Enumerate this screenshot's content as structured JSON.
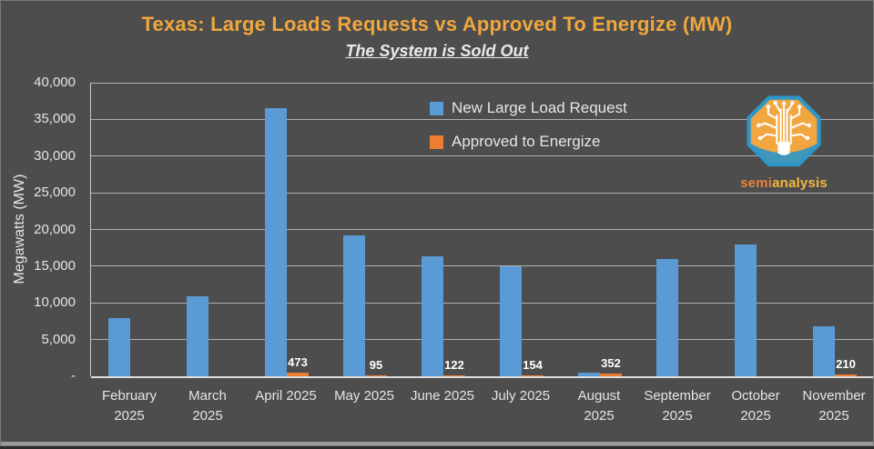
{
  "chart": {
    "title": "Texas: Large Loads Requests vs Approved To Energize (MW)",
    "subtitle": "The System is Sold Out"
  },
  "logo": {
    "semi": "semi",
    "analysis": "analysis"
  },
  "colors": {
    "background": "#4D4D4D",
    "title": "#F0A73E",
    "text": "#E6E6E6",
    "gridline": "#C9C9C9",
    "blue": "#5B9BD5",
    "orange": "#ED7D31",
    "data_label": "#FFFFFF",
    "logo_octagon": "#F2A640",
    "logo_blue": "#2E96C8"
  },
  "chart_data": {
    "type": "bar",
    "title": "Texas: Large Loads Requests vs Approved To Energize (MW)",
    "subtitle": "The System is Sold Out",
    "xlabel": "",
    "ylabel": "Megawatts (MW)",
    "ylim": [
      0,
      40000
    ],
    "ytick_interval": 5000,
    "ytick_labels": [
      "40,000",
      "35,000",
      "30,000",
      "25,000",
      "20,000",
      "15,000",
      "10,000",
      "5,000",
      "-"
    ],
    "grid": true,
    "legend_position": "inside-top-center",
    "categories": [
      "February\n2025",
      "March\n2025",
      "April 2025",
      "May 2025",
      "June 2025",
      "July 2025",
      "August\n2025",
      "September\n2025",
      "October\n2025",
      "November\n2025"
    ],
    "series": [
      {
        "name": "New Large Load Request",
        "color": "#5B9BD5",
        "values": [
          7900,
          10900,
          36500,
          19200,
          16400,
          15000,
          500,
          16000,
          18000,
          6800
        ]
      },
      {
        "name": "Approved to Energize",
        "color": "#ED7D31",
        "values": [
          0,
          0,
          473,
          95,
          122,
          154,
          352,
          0,
          0,
          210
        ],
        "data_labels": [
          null,
          null,
          "473",
          "95",
          "122",
          "154",
          "352",
          null,
          null,
          "210"
        ]
      }
    ]
  }
}
